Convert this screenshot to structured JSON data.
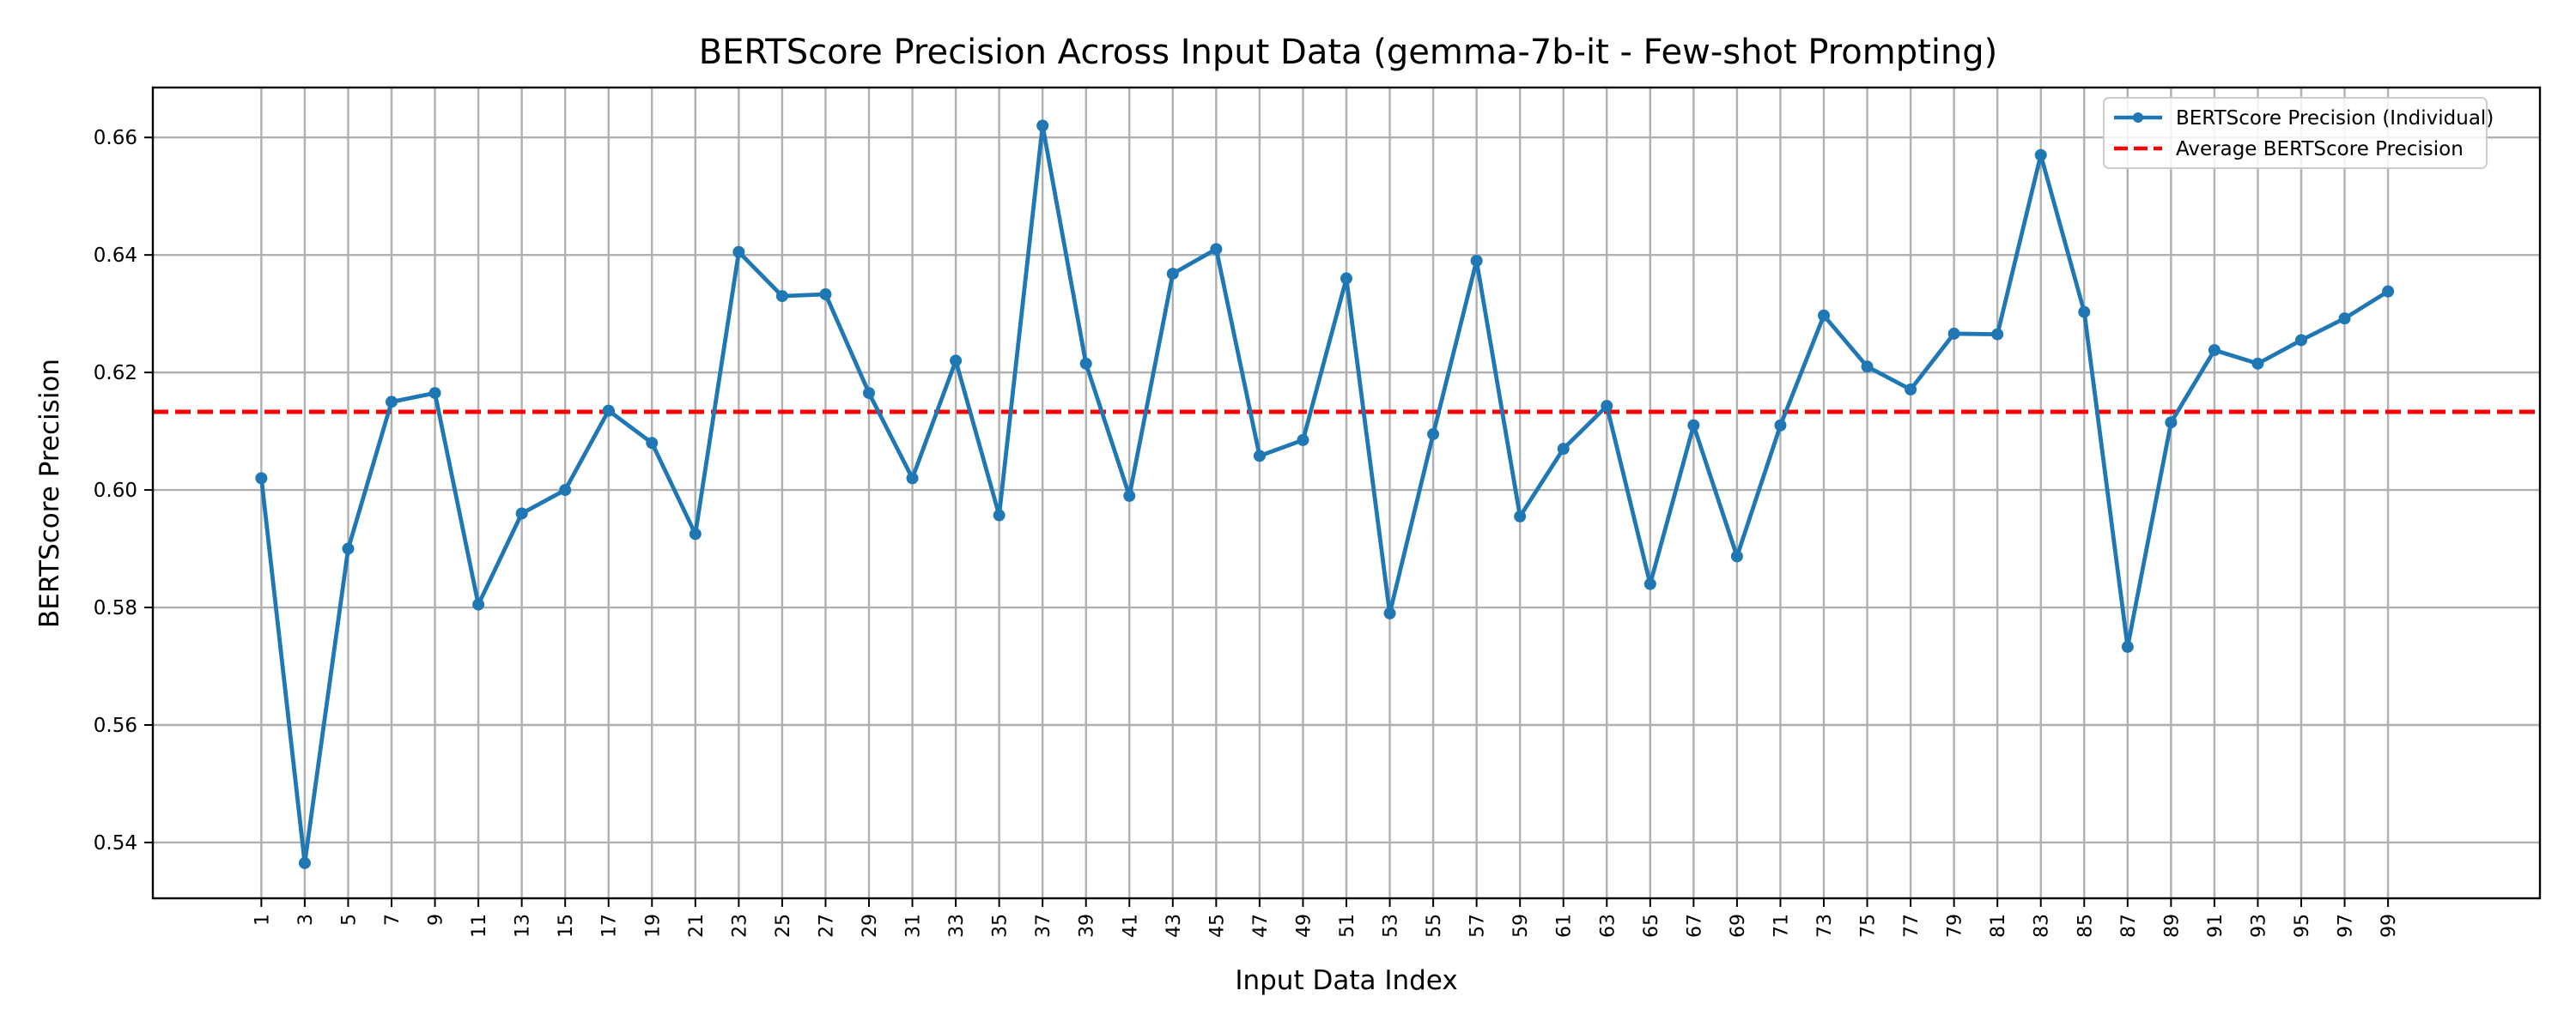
{
  "chart_data": {
    "type": "line",
    "title": "BERTScore Precision Across Input Data (gemma-7b-it - Few-shot Prompting)",
    "xlabel": "Input Data Index",
    "ylabel": "BERTScore Precision",
    "xlim": [
      -4,
      106
    ],
    "ylim": [
      0.5305,
      0.6685
    ],
    "x": [
      1,
      3,
      5,
      7,
      9,
      11,
      13,
      15,
      17,
      19,
      21,
      23,
      25,
      27,
      29,
      31,
      33,
      35,
      37,
      39,
      41,
      43,
      45,
      47,
      49,
      51,
      53,
      55,
      57,
      59,
      61,
      63,
      65,
      67,
      69,
      71,
      73,
      75,
      77,
      79,
      81,
      83,
      85,
      87,
      89,
      91,
      93,
      95,
      97,
      99
    ],
    "x_ticks": [
      "1",
      "3",
      "5",
      "7",
      "9",
      "11",
      "13",
      "15",
      "17",
      "19",
      "21",
      "23",
      "25",
      "27",
      "29",
      "31",
      "33",
      "35",
      "37",
      "39",
      "41",
      "43",
      "45",
      "47",
      "49",
      "51",
      "53",
      "55",
      "57",
      "59",
      "61",
      "63",
      "65",
      "67",
      "69",
      "71",
      "73",
      "75",
      "77",
      "79",
      "81",
      "83",
      "85",
      "87",
      "89",
      "91",
      "93",
      "95",
      "97",
      "99"
    ],
    "y_ticks": [
      "0.54",
      "0.56",
      "0.58",
      "0.60",
      "0.62",
      "0.64",
      "0.66"
    ],
    "y_tick_values": [
      0.54,
      0.56,
      0.58,
      0.6,
      0.62,
      0.64,
      0.66
    ],
    "grid": true,
    "legend_position": "top-right",
    "series": [
      {
        "name": "BERTScore Precision (Individual)",
        "color": "#1f77b4",
        "style": "solid-with-markers",
        "values": [
          0.602,
          0.5365,
          0.59,
          0.615,
          0.6165,
          0.5805,
          0.596,
          0.6,
          0.6135,
          0.608,
          0.5925,
          0.6405,
          0.633,
          0.6333,
          0.6165,
          0.602,
          0.622,
          0.5957,
          0.662,
          0.6215,
          0.599,
          0.6368,
          0.641,
          0.6058,
          0.6085,
          0.636,
          0.579,
          0.6095,
          0.639,
          0.5955,
          0.607,
          0.6143,
          0.584,
          0.611,
          0.5887,
          0.611,
          0.6297,
          0.621,
          0.6171,
          0.6266,
          0.6265,
          0.657,
          0.6303,
          0.5733,
          0.6115,
          0.6238,
          0.6215,
          0.6255,
          0.6292,
          0.6338
        ]
      },
      {
        "name": "Average BERTScore Precision",
        "color": "#ff0000",
        "style": "dashed",
        "value": 0.6133
      }
    ]
  }
}
